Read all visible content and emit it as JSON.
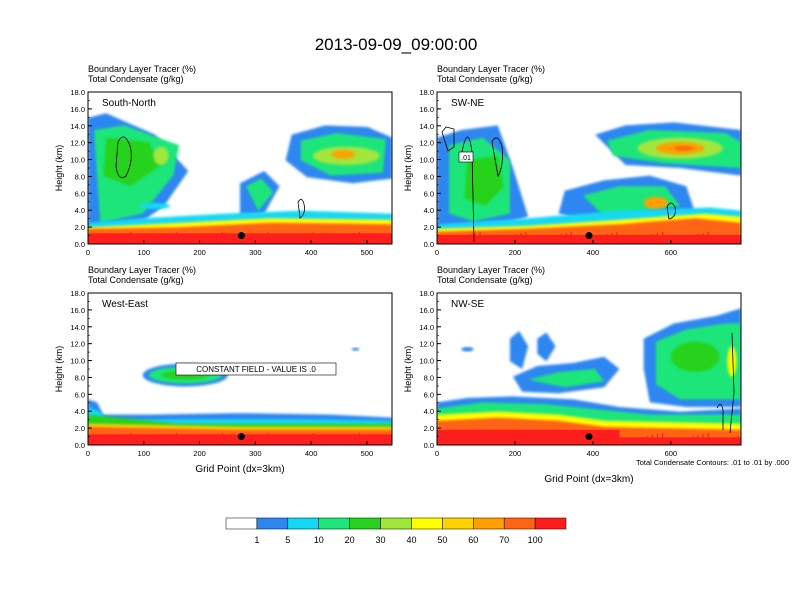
{
  "title": "2013-09-09_09:00:00",
  "colors": {
    "levels": [
      "#ffffff",
      "#2e86f0",
      "#14d8f5",
      "#1ee67a",
      "#28d21e",
      "#a2e63c",
      "#ffff00",
      "#ffd200",
      "#ffa000",
      "#ff6414",
      "#ff1e1e"
    ]
  },
  "colorbar": {
    "labels": [
      "1",
      "5",
      "10",
      "20",
      "30",
      "40",
      "50",
      "60",
      "70",
      "100"
    ]
  },
  "contour_note": "Total Condensate Contours: .01 to .01 by .000",
  "chart_data": [
    {
      "type": "heatmap",
      "id": "p1",
      "field_label": "Boundary Layer Tracer",
      "field_unit": "(%)",
      "contour_label": "Total Condensate",
      "contour_unit": "(g/kg)",
      "inset_label": "South-North",
      "ylabel": "Height (km)",
      "xlabel": "",
      "xlim": [
        0,
        545
      ],
      "ylim": [
        0,
        18
      ],
      "xticks": [
        0,
        100,
        200,
        300,
        400,
        500
      ],
      "yticks": [
        "0.0",
        "2.0",
        "4.0",
        "6.0",
        "8.0",
        "10.0",
        "12.0",
        "14.0",
        "16.0",
        "18.0"
      ],
      "marker": {
        "x": 275,
        "y": 1.0
      },
      "note": ""
    },
    {
      "type": "heatmap",
      "id": "p2",
      "field_label": "Boundary Layer Tracer",
      "field_unit": "(%)",
      "contour_label": "Total Condensate",
      "contour_unit": "(g/kg)",
      "inset_label": "SW-NE",
      "ylabel": "Height (km)",
      "xlabel": "",
      "xlim": [
        0,
        780
      ],
      "ylim": [
        0,
        18
      ],
      "xticks": [
        0,
        200,
        400,
        600
      ],
      "yticks": [
        "0.0",
        "2.0",
        "4.0",
        "6.0",
        "8.0",
        "10.0",
        "12.0",
        "14.0",
        "16.0",
        "18.0"
      ],
      "marker": {
        "x": 390,
        "y": 1.0
      },
      "contour_tag": ".01",
      "note": ""
    },
    {
      "type": "heatmap",
      "id": "p3",
      "field_label": "Boundary Layer Tracer",
      "field_unit": "(%)",
      "contour_label": "Total Condensate",
      "contour_unit": "(g/kg)",
      "inset_label": "West-East",
      "ylabel": "Height (km)",
      "xlabel": "Grid Point (dx=3km)",
      "xlim": [
        0,
        545
      ],
      "ylim": [
        0,
        18
      ],
      "xticks": [
        0,
        100,
        200,
        300,
        400,
        500
      ],
      "yticks": [
        "0.0",
        "2.0",
        "4.0",
        "6.0",
        "8.0",
        "10.0",
        "12.0",
        "14.0",
        "16.0",
        "18.0"
      ],
      "marker": {
        "x": 275,
        "y": 1.0
      },
      "constant_note": "CONSTANT FIELD - VALUE IS .0",
      "note": ""
    },
    {
      "type": "heatmap",
      "id": "p4",
      "field_label": "Boundary Layer Tracer",
      "field_unit": "(%)",
      "contour_label": "Total Condensate",
      "contour_unit": "(g/kg)",
      "inset_label": "NW-SE",
      "ylabel": "Height (km)",
      "xlabel": "Grid Point (dx=3km)",
      "xlim": [
        0,
        780
      ],
      "ylim": [
        0,
        18
      ],
      "xticks": [
        0,
        200,
        400,
        600
      ],
      "yticks": [
        "0.0",
        "2.0",
        "4.0",
        "6.0",
        "8.0",
        "10.0",
        "12.0",
        "14.0",
        "16.0",
        "18.0"
      ],
      "marker": {
        "x": 390,
        "y": 1.0
      },
      "note": "Total Condensate Contours: .01 to .01 by .000"
    }
  ]
}
